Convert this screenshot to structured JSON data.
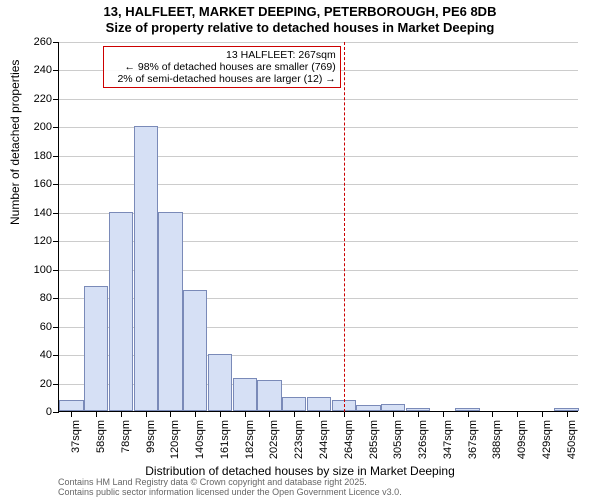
{
  "chart": {
    "type": "histogram",
    "title": "13, HALFLEET, MARKET DEEPING, PETERBOROUGH, PE6 8DB",
    "subtitle": "Size of property relative to detached houses in Market Deeping",
    "y_axis_title": "Number of detached properties",
    "x_axis_title": "Distribution of detached houses by size in Market Deeping",
    "background_color": "#ffffff",
    "grid_color": "#cccccc",
    "bar_fill": "#d6e0f5",
    "bar_border": "#7a8ab8",
    "marker_color": "#cc0000",
    "ylim": [
      0,
      260
    ],
    "ytick_step": 20,
    "y_ticks": [
      0,
      20,
      40,
      60,
      80,
      100,
      120,
      140,
      160,
      180,
      200,
      220,
      240,
      260
    ],
    "x_labels": [
      "37sqm",
      "58sqm",
      "78sqm",
      "99sqm",
      "120sqm",
      "140sqm",
      "161sqm",
      "182sqm",
      "202sqm",
      "223sqm",
      "244sqm",
      "264sqm",
      "285sqm",
      "305sqm",
      "326sqm",
      "347sqm",
      "367sqm",
      "388sqm",
      "409sqm",
      "429sqm",
      "450sqm"
    ],
    "bar_values": [
      8,
      88,
      140,
      200,
      140,
      85,
      40,
      23,
      22,
      10,
      10,
      8,
      4,
      5,
      2,
      0,
      2,
      0,
      0,
      0,
      2
    ],
    "marker_bin_index": 11,
    "annotation": {
      "line1": "13 HALFLEET: 267sqm",
      "line2": "← 98% of detached houses are smaller (769)",
      "line3": "2% of semi-detached houses are larger (12) →"
    },
    "attribution": {
      "line1": "Contains HM Land Registry data © Crown copyright and database right 2025.",
      "line2": "Contains public sector information licensed under the Open Government Licence v3.0."
    },
    "title_fontsize": 13,
    "label_fontsize": 11,
    "axis_title_fontsize": 12,
    "annotation_fontsize": 10.5,
    "attribution_fontsize": 9
  }
}
